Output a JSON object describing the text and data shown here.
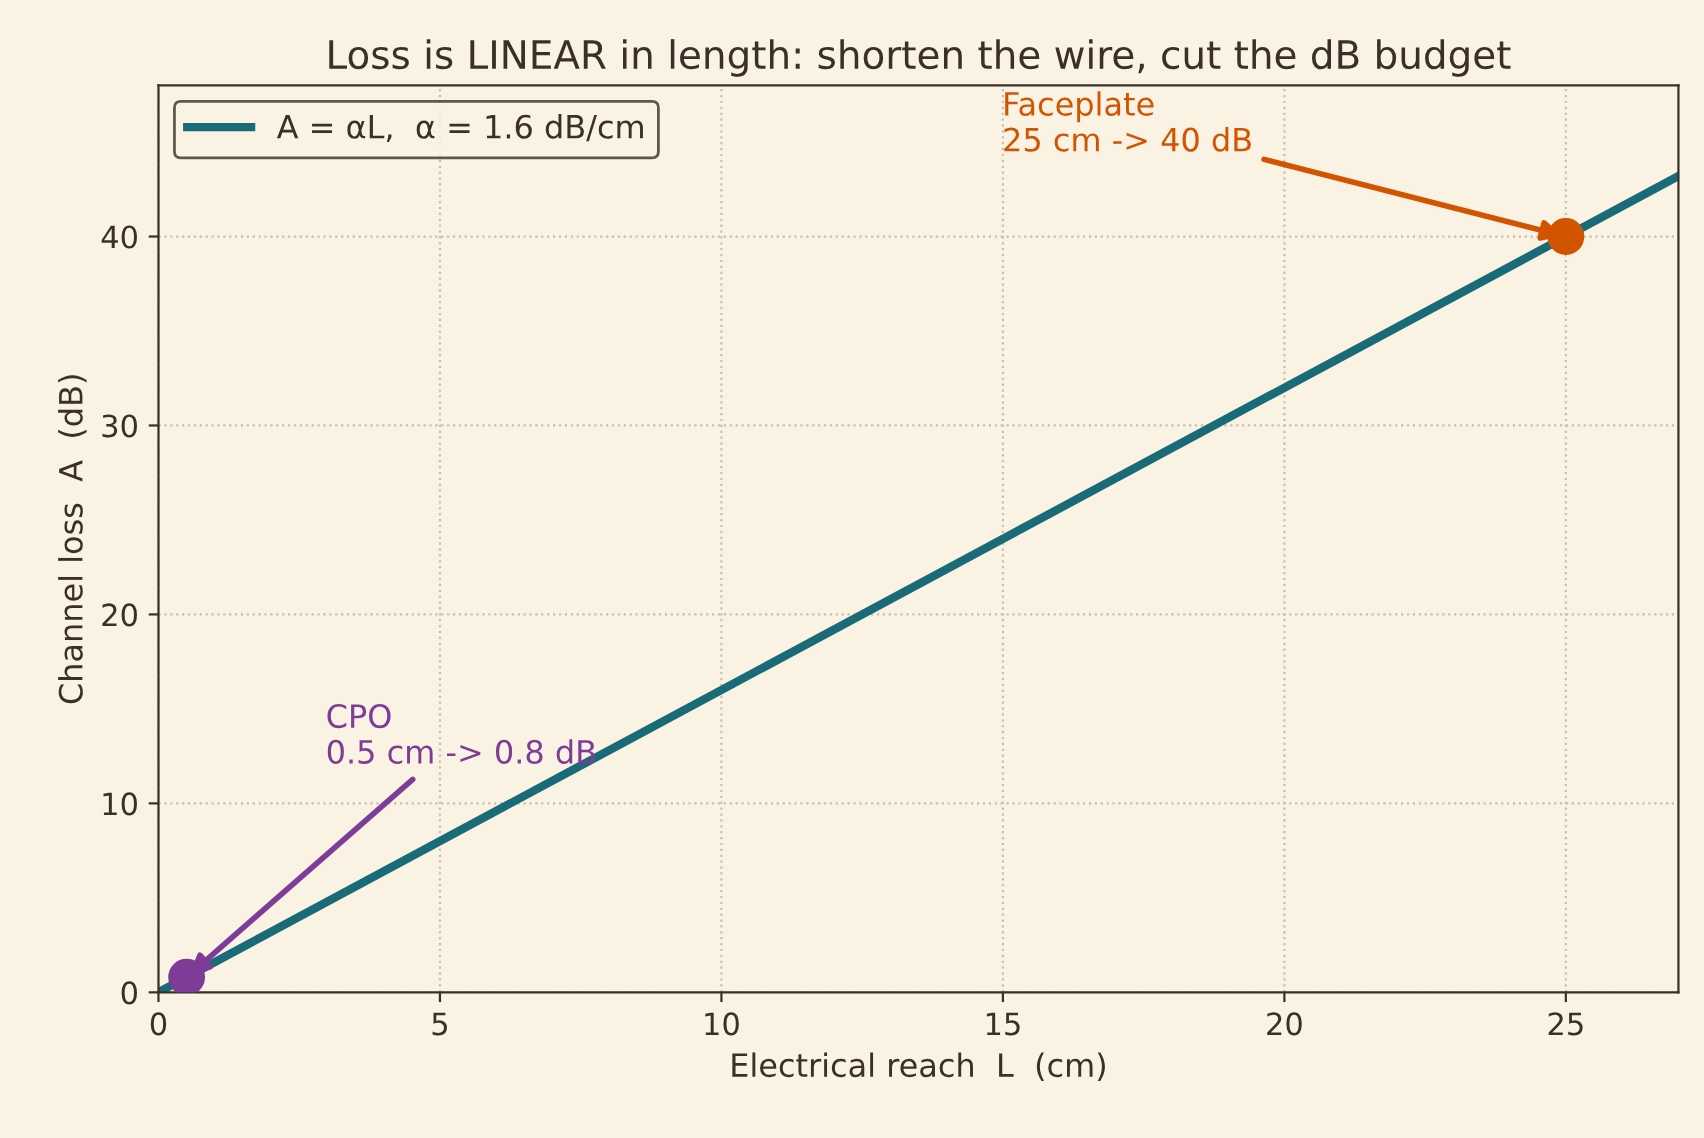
{
  "chart_data": {
    "type": "line",
    "title": "Loss is LINEAR in length: shorten the wire, cut the dB budget",
    "xlabel": "Electrical reach  L  (cm)",
    "ylabel": "Channel loss  A  (dB)",
    "series": [
      {
        "name": "A = αL,  α = 1.6 dB/cm",
        "color": "#1a6b78",
        "x": [
          0,
          27
        ],
        "values": [
          0,
          43.2
        ]
      },
      {
        "type": "scatter",
        "marker": "circle",
        "color": "#7d3c98",
        "x": [
          0.5
        ],
        "values": [
          0.8
        ]
      },
      {
        "type": "scatter",
        "marker": "circle",
        "color": "#d35400",
        "x": [
          25
        ],
        "values": [
          40
        ]
      }
    ],
    "annotations": [
      {
        "text": "CPO\n0.5 cm -> 0.8 dB",
        "x": 0.5,
        "y": 0.8
      },
      {
        "text": "Faceplate\n25 cm -> 40 dB",
        "x": 25,
        "y": 40
      }
    ],
    "xlim": [
      0,
      27
    ],
    "ylim": [
      0,
      48
    ],
    "xticks": [
      0,
      5,
      10,
      15,
      20,
      25
    ],
    "yticks": [
      0,
      10,
      20,
      30,
      40
    ],
    "grid": true,
    "legend": "top left",
    "line_style": "solid"
  }
}
